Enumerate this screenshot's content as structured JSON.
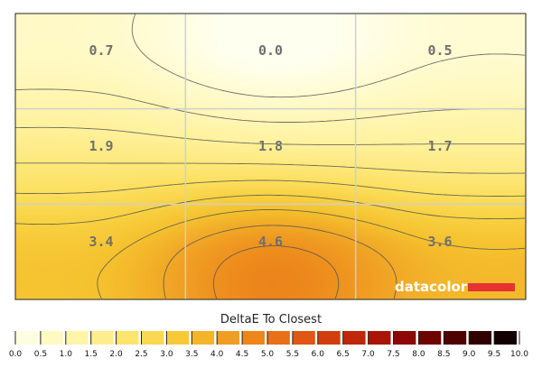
{
  "chart_data": {
    "type": "heatmap",
    "title": "DeltaE To Closest",
    "rows": 3,
    "cols": 3,
    "cells": [
      [
        0.7,
        0.0,
        0.5
      ],
      [
        1.9,
        1.8,
        1.7
      ],
      [
        3.4,
        4.6,
        3.6
      ]
    ],
    "cell_labels": [
      [
        "0.7",
        "0.0",
        "0.5"
      ],
      [
        "1.9",
        "1.8",
        "1.7"
      ],
      [
        "3.4",
        "4.6",
        "3.6"
      ]
    ],
    "scale_range": [
      0,
      10
    ],
    "scale_ticks": [
      "0.0",
      "0.5",
      "1.0",
      "1.5",
      "2.0",
      "2.5",
      "3.0",
      "3.5",
      "4.0",
      "4.5",
      "5.0",
      "5.5",
      "6.0",
      "6.5",
      "7.0",
      "7.5",
      "8.0",
      "8.5",
      "9.0",
      "9.5",
      "10.0"
    ],
    "colorscale": [
      [
        0.0,
        "#fffff0"
      ],
      [
        0.5,
        "#fffbd0"
      ],
      [
        1.0,
        "#fff6b4"
      ],
      [
        1.5,
        "#fff19c"
      ],
      [
        2.0,
        "#fde87c"
      ],
      [
        2.5,
        "#fbdf5e"
      ],
      [
        3.0,
        "#f8d142"
      ],
      [
        3.5,
        "#f5c12e"
      ],
      [
        4.0,
        "#f1a826"
      ],
      [
        4.5,
        "#ee921f"
      ],
      [
        5.0,
        "#eb7c18"
      ],
      [
        5.5,
        "#e46414"
      ],
      [
        6.0,
        "#d94a10"
      ],
      [
        6.5,
        "#c9310c"
      ],
      [
        7.0,
        "#b51b08"
      ],
      [
        7.5,
        "#9c0c05"
      ],
      [
        8.0,
        "#7e0403"
      ],
      [
        8.5,
        "#5e0102"
      ],
      [
        9.0,
        "#400000"
      ],
      [
        9.5,
        "#200000"
      ],
      [
        10.0,
        "#000000"
      ]
    ],
    "contour_levels": [
      0.5,
      1.0,
      1.5,
      2.0,
      2.5,
      3.0,
      3.5,
      4.0,
      4.5
    ],
    "grid": true
  },
  "logo": {
    "text": "datacolor",
    "accent": "#e63232"
  }
}
